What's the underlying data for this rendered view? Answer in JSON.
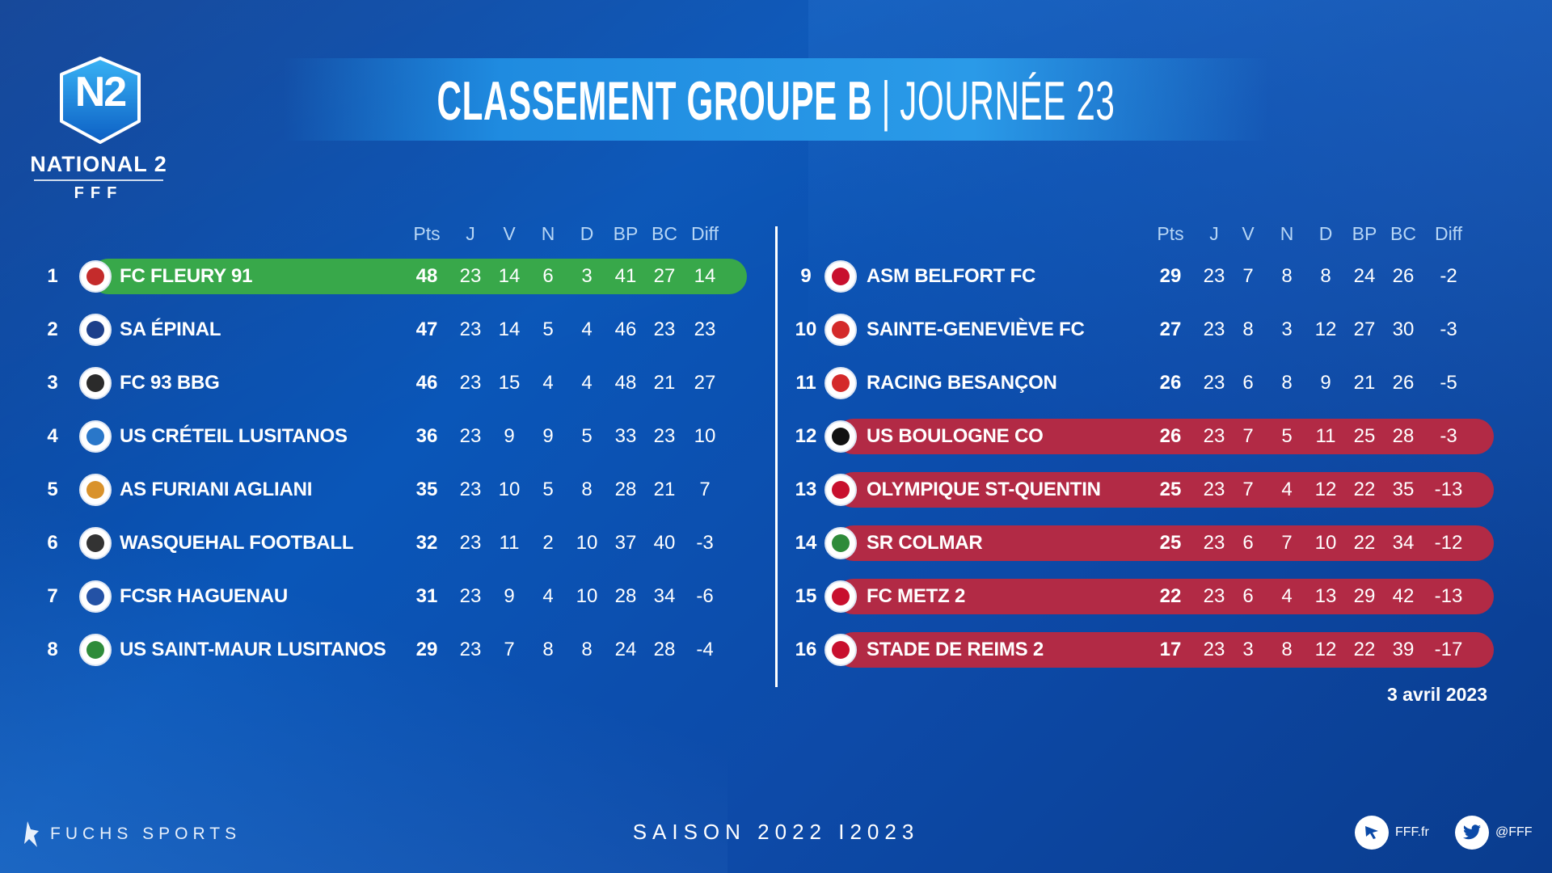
{
  "header": {
    "title_bold": "CLASSEMENT GROUPE B",
    "title_sep": "|",
    "title_light": "JOURNÉE 23"
  },
  "logo": {
    "badge": "N2",
    "name": "NATIONAL 2",
    "org": "FFF"
  },
  "columns": [
    "Pts",
    "J",
    "V",
    "N",
    "D",
    "BP",
    "BC",
    "Diff"
  ],
  "left_table": [
    {
      "rank": "1",
      "team": "FC FLEURY 91",
      "pts": "48",
      "j": "23",
      "v": "14",
      "n": "6",
      "d": "3",
      "bp": "41",
      "bc": "27",
      "diff": "14"
    },
    {
      "rank": "2",
      "team": "SA ÉPINAL",
      "pts": "47",
      "j": "23",
      "v": "14",
      "n": "5",
      "d": "4",
      "bp": "46",
      "bc": "23",
      "diff": "23"
    },
    {
      "rank": "3",
      "team": "FC 93 BBG",
      "pts": "46",
      "j": "23",
      "v": "15",
      "n": "4",
      "d": "4",
      "bp": "48",
      "bc": "21",
      "diff": "27"
    },
    {
      "rank": "4",
      "team": "US CRÉTEIL LUSITANOS",
      "pts": "36",
      "j": "23",
      "v": "9",
      "n": "9",
      "d": "5",
      "bp": "33",
      "bc": "23",
      "diff": "10"
    },
    {
      "rank": "5",
      "team": "AS FURIANI AGLIANI",
      "pts": "35",
      "j": "23",
      "v": "10",
      "n": "5",
      "d": "8",
      "bp": "28",
      "bc": "21",
      "diff": "7"
    },
    {
      "rank": "6",
      "team": "WASQUEHAL FOOTBALL",
      "pts": "32",
      "j": "23",
      "v": "11",
      "n": "2",
      "d": "10",
      "bp": "37",
      "bc": "40",
      "diff": "-3"
    },
    {
      "rank": "7",
      "team": "FCSR HAGUENAU",
      "pts": "31",
      "j": "23",
      "v": "9",
      "n": "4",
      "d": "10",
      "bp": "28",
      "bc": "34",
      "diff": "-6"
    },
    {
      "rank": "8",
      "team": "US SAINT-MAUR LUSITANOS",
      "pts": "29",
      "j": "23",
      "v": "7",
      "n": "8",
      "d": "8",
      "bp": "24",
      "bc": "28",
      "diff": "-4"
    }
  ],
  "right_table": [
    {
      "rank": "9",
      "team": "ASM BELFORT FC",
      "pts": "29",
      "j": "23",
      "v": "7",
      "n": "8",
      "d": "8",
      "bp": "24",
      "bc": "26",
      "diff": "-2"
    },
    {
      "rank": "10",
      "team": "SAINTE-GENEVIÈVE FC",
      "pts": "27",
      "j": "23",
      "v": "8",
      "n": "3",
      "d": "12",
      "bp": "27",
      "bc": "30",
      "diff": "-3"
    },
    {
      "rank": "11",
      "team": "RACING BESANÇON",
      "pts": "26",
      "j": "23",
      "v": "6",
      "n": "8",
      "d": "9",
      "bp": "21",
      "bc": "26",
      "diff": "-5"
    },
    {
      "rank": "12",
      "team": "US BOULOGNE CO",
      "pts": "26",
      "j": "23",
      "v": "7",
      "n": "5",
      "d": "11",
      "bp": "25",
      "bc": "28",
      "diff": "-3"
    },
    {
      "rank": "13",
      "team": "OLYMPIQUE ST-QUENTIN",
      "pts": "25",
      "j": "23",
      "v": "7",
      "n": "4",
      "d": "12",
      "bp": "22",
      "bc": "35",
      "diff": "-13"
    },
    {
      "rank": "14",
      "team": "SR COLMAR",
      "pts": "25",
      "j": "23",
      "v": "6",
      "n": "7",
      "d": "10",
      "bp": "22",
      "bc": "34",
      "diff": "-12"
    },
    {
      "rank": "15",
      "team": "FC METZ 2",
      "pts": "22",
      "j": "23",
      "v": "6",
      "n": "4",
      "d": "13",
      "bp": "29",
      "bc": "42",
      "diff": "-13"
    },
    {
      "rank": "16",
      "team": "STADE DE REIMS 2",
      "pts": "17",
      "j": "23",
      "v": "3",
      "n": "8",
      "d": "12",
      "bp": "22",
      "bc": "39",
      "diff": "-17"
    }
  ],
  "date": "3 avril 2023",
  "footer": {
    "sponsor_name": "FUCHS SPORTS",
    "season": "SAISON 2022 I2023",
    "site": "FFF.fr",
    "twitter": "@FFF"
  },
  "colors": {
    "promotion": "#38a84a",
    "relegation": "#b22a45",
    "banner": "#1f8be0"
  }
}
